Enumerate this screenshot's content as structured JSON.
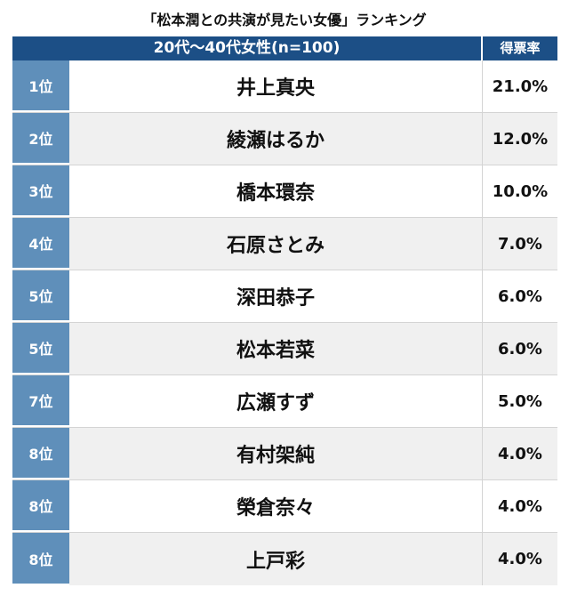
{
  "title": "「松本潤との共演が見たい女優」ランキング",
  "header": {
    "group_label": "20代〜40代女性(n=100)",
    "rate_label": "得票率"
  },
  "rows": [
    {
      "rank": "1位",
      "name": "井上真央",
      "rate": "21.0%"
    },
    {
      "rank": "2位",
      "name": "綾瀬はるか",
      "rate": "12.0%"
    },
    {
      "rank": "3位",
      "name": "橋本環奈",
      "rate": "10.0%"
    },
    {
      "rank": "4位",
      "name": "石原さとみ",
      "rate": "7.0%"
    },
    {
      "rank": "5位",
      "name": "深田恭子",
      "rate": "6.0%"
    },
    {
      "rank": "5位",
      "name": "松本若菜",
      "rate": "6.0%"
    },
    {
      "rank": "7位",
      "name": "広瀬すず",
      "rate": "5.0%"
    },
    {
      "rank": "8位",
      "name": "有村架純",
      "rate": "4.0%"
    },
    {
      "rank": "8位",
      "name": "榮倉奈々",
      "rate": "4.0%"
    },
    {
      "rank": "8位",
      "name": "上戸彩",
      "rate": "4.0%"
    }
  ],
  "colors": {
    "header_bg": "#1c4f86",
    "rank_bg": "#5f8fba",
    "alt_row_bg": "#f0f0f0"
  }
}
